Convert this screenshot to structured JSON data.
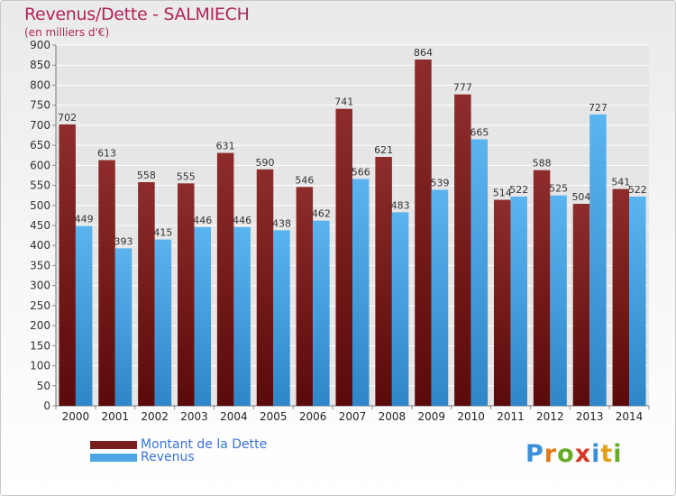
{
  "chart_data": {
    "type": "bar",
    "title": "Revenus/Dette - SALMIECH",
    "subtitle": "(en milliers d'€)",
    "categories": [
      "2000",
      "2001",
      "2002",
      "2003",
      "2004",
      "2005",
      "2006",
      "2007",
      "2008",
      "2009",
      "2010",
      "2011",
      "2012",
      "2013",
      "2014"
    ],
    "series": [
      {
        "name": "Montant de la Dette",
        "color": "#7a1d1d",
        "values": [
          702,
          613,
          558,
          555,
          631,
          590,
          546,
          741,
          621,
          864,
          777,
          514,
          588,
          504,
          541
        ]
      },
      {
        "name": "Revenus",
        "color": "#4aa6e6",
        "values": [
          449,
          393,
          415,
          446,
          446,
          438,
          462,
          566,
          483,
          539,
          665,
          522,
          525,
          727,
          522
        ]
      }
    ],
    "ylim": [
      0,
      900
    ],
    "ytick_step": 50,
    "grid": true,
    "legend_position": "bottom-left"
  },
  "logo": {
    "text": "Proxiti"
  }
}
